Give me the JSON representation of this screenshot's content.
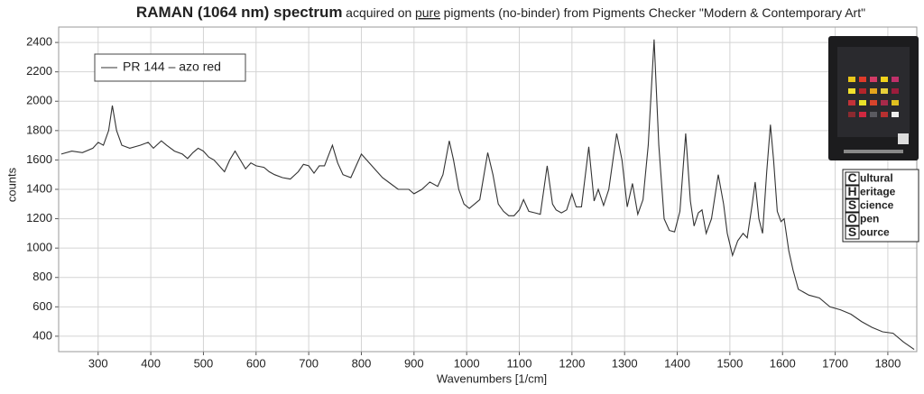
{
  "chart_data": {
    "type": "line",
    "title_parts": [
      "RAMAN (1064 nm) spectrum",
      "acquired on",
      "pure",
      "pigments (no-binder) from Pigments Checker \"Modern & Contemporary Art\""
    ],
    "xlabel": "Wavenumbers [1/cm]",
    "ylabel": "counts",
    "xlim": [
      225,
      1855
    ],
    "ylim": [
      295,
      2505
    ],
    "xticks": [
      300,
      400,
      500,
      600,
      700,
      800,
      900,
      1000,
      1100,
      1200,
      1300,
      1400,
      1500,
      1600,
      1700,
      1800
    ],
    "yticks": [
      400,
      600,
      800,
      1000,
      1200,
      1400,
      1600,
      1800,
      2000,
      2200,
      2400
    ],
    "grid": true,
    "legend": "upper left",
    "x": [
      230,
      250,
      270,
      290,
      300,
      310,
      320,
      327,
      335,
      345,
      360,
      380,
      395,
      405,
      420,
      430,
      445,
      460,
      470,
      480,
      490,
      500,
      510,
      520,
      530,
      540,
      550,
      560,
      570,
      580,
      590,
      600,
      615,
      625,
      635,
      650,
      665,
      680,
      690,
      700,
      710,
      720,
      730,
      745,
      755,
      765,
      780,
      800,
      810,
      825,
      840,
      855,
      870,
      890,
      900,
      915,
      930,
      945,
      955,
      967,
      975,
      985,
      995,
      1005,
      1015,
      1025,
      1040,
      1050,
      1060,
      1070,
      1080,
      1090,
      1100,
      1108,
      1118,
      1130,
      1140,
      1153,
      1163,
      1170,
      1180,
      1190,
      1200,
      1208,
      1218,
      1232,
      1242,
      1250,
      1260,
      1270,
      1285,
      1295,
      1305,
      1315,
      1325,
      1335,
      1345,
      1356,
      1365,
      1375,
      1385,
      1395,
      1405,
      1416,
      1425,
      1432,
      1440,
      1447,
      1455,
      1465,
      1478,
      1488,
      1495,
      1505,
      1515,
      1525,
      1533,
      1542,
      1548,
      1555,
      1562,
      1570,
      1577,
      1583,
      1590,
      1597,
      1603,
      1612,
      1620,
      1630,
      1650,
      1670,
      1690,
      1710,
      1730,
      1750,
      1770,
      1790,
      1810,
      1830,
      1850
    ],
    "series": [
      {
        "name": "PR 144 – azo red",
        "color": "#333333",
        "values": [
          1640,
          1660,
          1650,
          1680,
          1720,
          1700,
          1800,
          1970,
          1800,
          1700,
          1680,
          1700,
          1720,
          1680,
          1730,
          1700,
          1660,
          1640,
          1610,
          1650,
          1680,
          1660,
          1620,
          1600,
          1560,
          1520,
          1600,
          1660,
          1600,
          1540,
          1580,
          1560,
          1550,
          1520,
          1500,
          1480,
          1470,
          1520,
          1570,
          1560,
          1510,
          1560,
          1560,
          1700,
          1580,
          1500,
          1480,
          1640,
          1600,
          1540,
          1480,
          1440,
          1400,
          1400,
          1370,
          1400,
          1450,
          1420,
          1500,
          1730,
          1600,
          1400,
          1300,
          1270,
          1300,
          1330,
          1650,
          1500,
          1300,
          1250,
          1220,
          1220,
          1260,
          1330,
          1250,
          1240,
          1230,
          1560,
          1300,
          1260,
          1240,
          1260,
          1370,
          1280,
          1280,
          1690,
          1320,
          1400,
          1290,
          1400,
          1780,
          1600,
          1280,
          1440,
          1230,
          1330,
          1700,
          2420,
          1700,
          1200,
          1120,
          1110,
          1250,
          1780,
          1320,
          1150,
          1240,
          1260,
          1100,
          1200,
          1500,
          1300,
          1100,
          950,
          1050,
          1100,
          1070,
          1290,
          1450,
          1200,
          1100,
          1520,
          1840,
          1600,
          1250,
          1180,
          1200,
          980,
          850,
          720,
          680,
          660,
          600,
          580,
          550,
          500,
          460,
          430,
          420,
          360,
          310
        ]
      }
    ]
  },
  "logo": {
    "letters": [
      "C",
      "H",
      "S",
      "O",
      "S"
    ],
    "rest": [
      "ultural",
      "eritage",
      "cience",
      "pen",
      "ource"
    ]
  }
}
